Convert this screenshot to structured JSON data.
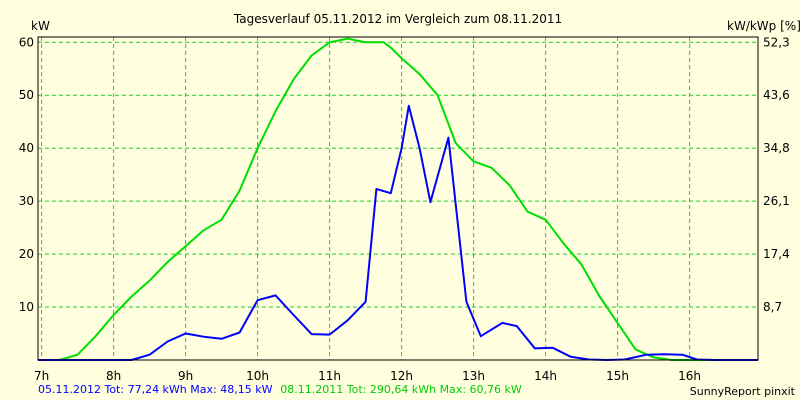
{
  "chart_data": {
    "type": "line",
    "title": "Tagesverlauf 05.11.2012 im Vergleich zum 08.11.2011",
    "ylabel": "kW",
    "y2label": "kW/kWp [%]",
    "ylim": [
      0,
      61
    ],
    "xlim": [
      6.95,
      16.95
    ],
    "x_ticks": [
      "7h",
      "8h",
      "9h",
      "10h",
      "11h",
      "12h",
      "13h",
      "14h",
      "15h",
      "16h"
    ],
    "y_ticks": [
      10,
      20,
      30,
      40,
      50,
      60
    ],
    "y2_ticks": [
      "8,7",
      "17,4",
      "26,1",
      "34,8",
      "43,6",
      "52,3"
    ],
    "grid": true,
    "series": [
      {
        "name": "05.11.2012",
        "color": "#0000ff",
        "x": [
          6.95,
          7.25,
          7.5,
          7.75,
          8,
          8.25,
          8.5,
          8.75,
          9,
          9.25,
          9.5,
          9.75,
          10,
          10.25,
          10.5,
          10.75,
          11,
          11.25,
          11.5,
          11.65,
          11.85,
          12,
          12.1,
          12.25,
          12.4,
          12.65,
          12.9,
          13.1,
          13.4,
          13.6,
          13.85,
          14.1,
          14.35,
          14.6,
          14.85,
          15.1,
          15.4,
          15.65,
          15.9,
          16.1,
          16.35,
          16.6,
          16.95
        ],
        "y": [
          0,
          0,
          0,
          0,
          0,
          0,
          1,
          3.5,
          5,
          4.4,
          4,
          5.2,
          11.3,
          12.2,
          8.5,
          4.9,
          4.8,
          7.5,
          11,
          32.3,
          31.5,
          40,
          48,
          40,
          29.8,
          42,
          11,
          4.5,
          7,
          6.4,
          2.2,
          2.3,
          0.6,
          0.1,
          0,
          0.1,
          1,
          1.1,
          1,
          0.1,
          0,
          0,
          0
        ]
      },
      {
        "name": "08.11.2011",
        "color": "#00dd00",
        "x": [
          6.95,
          7.25,
          7.5,
          7.75,
          8,
          8.25,
          8.5,
          8.75,
          9,
          9.25,
          9.5,
          9.75,
          10,
          10.25,
          10.5,
          10.75,
          11,
          11.25,
          11.5,
          11.75,
          11.85,
          12,
          12.25,
          12.5,
          12.75,
          13,
          13.25,
          13.5,
          13.75,
          14,
          14.25,
          14.5,
          14.75,
          15,
          15.25,
          15.5,
          15.75,
          16,
          16.15,
          16.35,
          16.6,
          16.95
        ],
        "y": [
          0,
          0,
          1,
          4.5,
          8.5,
          12,
          15,
          18.5,
          21.5,
          24.5,
          26.5,
          32,
          40,
          47,
          53,
          57.5,
          60,
          60.7,
          60,
          60,
          59,
          57,
          54,
          50,
          41,
          37.5,
          36.3,
          33,
          28,
          26.5,
          22,
          18,
          12,
          7,
          2,
          0.5,
          0,
          0,
          0,
          0,
          0,
          0
        ]
      }
    ]
  },
  "footer": {
    "series1_text": "05.11.2012 Tot: 77,24 kWh Max: 48,15 kW",
    "series2_text": "08.11.2011 Tot: 290,64 kWh Max: 60,76 kW",
    "credit": "SunnyReport pinxit"
  }
}
